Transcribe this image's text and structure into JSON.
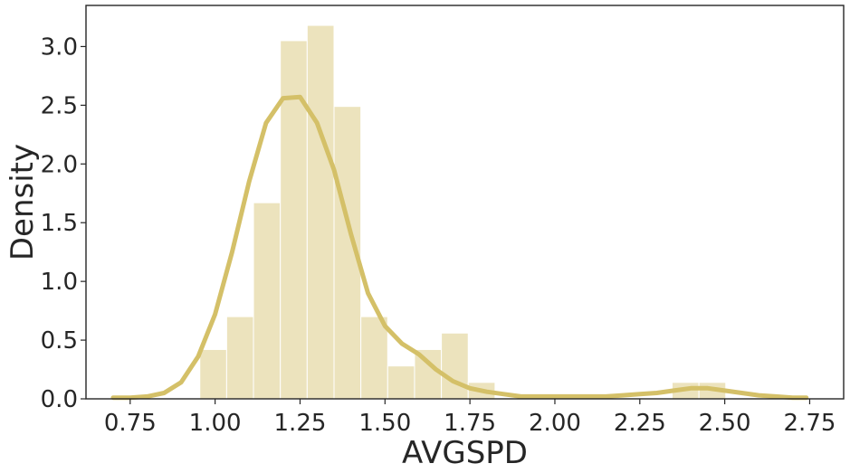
{
  "chart_data": {
    "type": "bar",
    "xlabel": "AVGSPD",
    "ylabel": "Density",
    "xlim": [
      0.62,
      2.85
    ],
    "ylim": [
      0.0,
      3.35
    ],
    "x_ticks": [
      "0.75",
      "1.00",
      "1.25",
      "1.50",
      "1.75",
      "2.00",
      "2.25",
      "2.50",
      "2.75"
    ],
    "y_ticks": [
      "0.0",
      "0.5",
      "1.0",
      "1.5",
      "2.0",
      "2.5",
      "3.0"
    ],
    "grid": false,
    "bar_color": "#ece3bd",
    "line_color": "#d4c068",
    "histogram": {
      "bin_edges": [
        0.955,
        1.034,
        1.113,
        1.192,
        1.271,
        1.35,
        1.429,
        1.508,
        1.587,
        1.666,
        1.745,
        1.824,
        2.345,
        2.424,
        2.503
      ],
      "values": [
        0.42,
        0.7,
        1.67,
        3.05,
        3.18,
        2.49,
        0.7,
        0.28,
        0.42,
        0.56,
        0.14,
        0.0,
        0.14,
        0.14
      ]
    },
    "kde": {
      "x": [
        0.7,
        0.75,
        0.8,
        0.85,
        0.9,
        0.95,
        1.0,
        1.05,
        1.1,
        1.15,
        1.2,
        1.25,
        1.3,
        1.35,
        1.4,
        1.45,
        1.5,
        1.55,
        1.6,
        1.65,
        1.7,
        1.75,
        1.8,
        1.85,
        1.9,
        1.95,
        2.0,
        2.05,
        2.1,
        2.15,
        2.2,
        2.25,
        2.3,
        2.35,
        2.4,
        2.45,
        2.5,
        2.55,
        2.6,
        2.65,
        2.7,
        2.74
      ],
      "y": [
        0.01,
        0.01,
        0.02,
        0.05,
        0.14,
        0.36,
        0.72,
        1.25,
        1.85,
        2.35,
        2.56,
        2.57,
        2.35,
        1.95,
        1.4,
        0.9,
        0.62,
        0.47,
        0.38,
        0.25,
        0.15,
        0.09,
        0.06,
        0.04,
        0.02,
        0.02,
        0.02,
        0.02,
        0.02,
        0.02,
        0.03,
        0.04,
        0.05,
        0.07,
        0.09,
        0.09,
        0.07,
        0.05,
        0.03,
        0.02,
        0.01,
        0.01
      ]
    }
  }
}
